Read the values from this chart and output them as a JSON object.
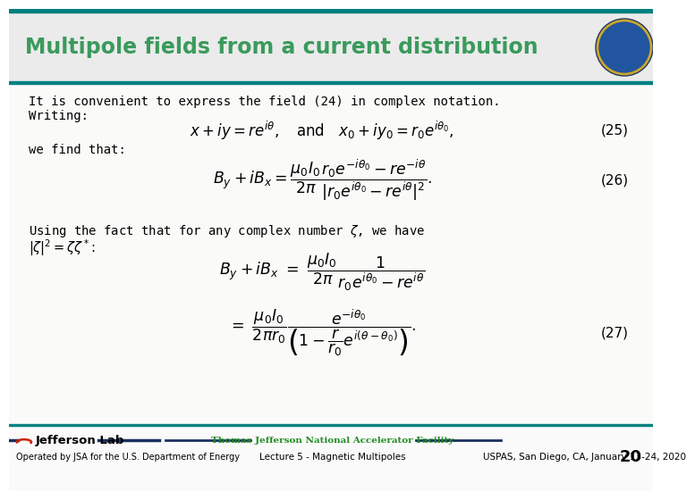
{
  "title": "Multipole fields from a current distribution",
  "title_color": "#3a9a5c",
  "title_fontsize": 17,
  "bg_color": "#FFFFFF",
  "teal_color": "#008080",
  "slide_number": "20",
  "footer_left": "Operated by JSA for the U.S. Department of Energy",
  "footer_center_top": "Thomas Jefferson National Accelerator Facility",
  "footer_center_bottom": "Lecture 5 - Magnetic Multipoles",
  "footer_right": "USPAS, San Diego, CA, January 13-24, 2020",
  "footer_center_color": "#228B22",
  "text1": "It is convenient to express the field (24) in complex notation.",
  "text2": "Writing:",
  "text3": "we find that:",
  "text4": "Using the fact that for any complex number $\\zeta$, we have",
  "text5": "$|\\zeta|^2 = \\zeta\\zeta^*$:",
  "eq25_num": "(25)",
  "eq26_num": "(26)",
  "eq27_num": "(27)",
  "content_bg": "#F5F5F0",
  "header_bg": "#ECECEC"
}
